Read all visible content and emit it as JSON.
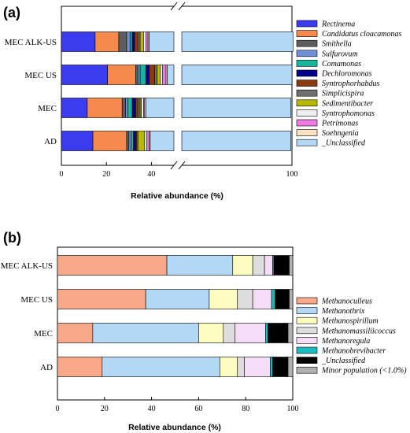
{
  "chart_data": [
    {
      "type": "bar",
      "orientation": "horizontal",
      "stacked": true,
      "panel_label": "(a)",
      "categories": [
        "MEC ALK-US",
        "MEC US",
        "MEC",
        "AD"
      ],
      "xlabel": "Relative abundance (%)",
      "ylabel": "",
      "xlim": [
        0,
        100
      ],
      "x_axis_break": [
        50,
        100
      ],
      "xticks": [
        "0",
        "20",
        "40",
        "100"
      ],
      "legend_position": "right",
      "series": [
        {
          "name": "Rectinema",
          "color": "#3b3bf0",
          "values": [
            15,
            20.5,
            11.5,
            14
          ]
        },
        {
          "name": "Candidatus cloacamonas",
          "color": "#f5894e",
          "values": [
            10.5,
            12.5,
            15.5,
            15
          ]
        },
        {
          "name": "Smithella",
          "color": "#5e5e5e",
          "values": [
            3.5,
            1,
            1.5,
            1
          ]
        },
        {
          "name": "Sulfurovum",
          "color": "#6f8fd8",
          "values": [
            1.5,
            1,
            1,
            1
          ]
        },
        {
          "name": "Comamonas",
          "color": "#17b69a",
          "values": [
            1,
            2.5,
            2,
            1
          ]
        },
        {
          "name": "Dechloromonas",
          "color": "#00008b",
          "values": [
            1,
            1.5,
            1.5,
            1
          ]
        },
        {
          "name": "Syntrophorhabdus",
          "color": "#8b3a0f",
          "values": [
            1.5,
            2.5,
            1,
            0.5
          ]
        },
        {
          "name": "Simplicispira",
          "color": "#707070",
          "values": [
            1,
            1,
            1,
            0.5
          ]
        },
        {
          "name": "Sedimentibacter",
          "color": "#b8b800",
          "values": [
            1.5,
            1.5,
            0.5,
            3
          ]
        },
        {
          "name": "Syntrophomonas",
          "color": "#f0f0f0",
          "values": [
            1,
            1,
            1,
            1
          ]
        },
        {
          "name": "Petrimonas",
          "color": "#f07ae0",
          "values": [
            1,
            1.5,
            0.5,
            1
          ]
        },
        {
          "name": "Soehngenia",
          "color": "#fbe3c2",
          "values": [
            0.5,
            0.5,
            0.5,
            0.5
          ]
        },
        {
          "name": "_Unclassified",
          "color": "#b3d8f5",
          "values": [
            61.5,
            53,
            62,
            60
          ]
        }
      ]
    },
    {
      "type": "bar",
      "orientation": "horizontal",
      "stacked": true,
      "panel_label": "(b)",
      "categories": [
        "MEC ALK-US",
        "MEC US",
        "MEC",
        "AD"
      ],
      "xlabel": "Relative abundance (%)",
      "ylabel": "",
      "xlim": [
        0,
        100
      ],
      "xticks": [
        "0",
        "20",
        "40",
        "60",
        "80",
        "100"
      ],
      "legend_position": "right",
      "series": [
        {
          "name": "Methanoculleus",
          "color": "#f9a88a",
          "values": [
            46.5,
            37.5,
            15,
            19
          ]
        },
        {
          "name": "Methanothrix",
          "color": "#b3d8f5",
          "values": [
            28,
            27,
            45,
            50
          ]
        },
        {
          "name": "Methanospirillum",
          "color": "#fdfcc0",
          "values": [
            8.5,
            12,
            10.5,
            7.5
          ]
        },
        {
          "name": "Methanomassiliicoccus",
          "color": "#dddddd",
          "values": [
            5,
            6.5,
            5,
            3
          ]
        },
        {
          "name": "Methanoregula",
          "color": "#f5dcf7",
          "values": [
            3.5,
            8,
            13,
            11
          ]
        },
        {
          "name": "Methanobrevibacter",
          "color": "#1bbcc0",
          "values": [
            0.5,
            1.5,
            1,
            1
          ]
        },
        {
          "name": "_Unclassified",
          "color": "#000000",
          "values": [
            6.5,
            6,
            8.5,
            6.5
          ]
        },
        {
          "name": "Minor population (<1.0%)",
          "color": "#b0b0b0",
          "values": [
            1.5,
            1.5,
            2,
            2
          ]
        }
      ]
    }
  ]
}
